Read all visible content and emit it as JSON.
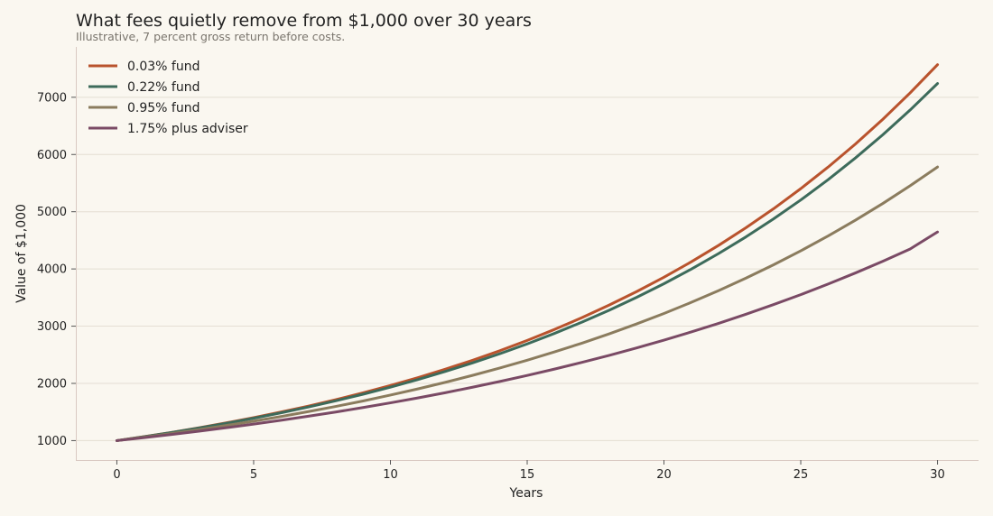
{
  "chart_data": {
    "type": "line",
    "title": "What fees quietly remove from $1,000 over 30 years",
    "subtitle": "Illustrative, 7 percent gross return before costs.",
    "xlabel": "Years",
    "ylabel": "Value of $1,000",
    "xlim": [
      -1.5,
      31.5
    ],
    "ylim": [
      660,
      7880
    ],
    "xticks": [
      0,
      5,
      10,
      15,
      20,
      25,
      30
    ],
    "yticks": [
      1000,
      2000,
      3000,
      4000,
      5000,
      6000,
      7000
    ],
    "grid": "horizontal",
    "legend_position": "top-left",
    "x": [
      0,
      1,
      2,
      3,
      4,
      5,
      6,
      7,
      8,
      9,
      10,
      11,
      12,
      13,
      14,
      15,
      16,
      17,
      18,
      19,
      20,
      21,
      22,
      23,
      24,
      25,
      26,
      27,
      28,
      29,
      30
    ],
    "series": [
      {
        "name": "0.03% fund",
        "color": "#b9532d",
        "values": [
          1000,
          1070,
          1144,
          1224,
          1310,
          1401,
          1499,
          1603,
          1715,
          1835,
          1963,
          2100,
          2247,
          2404,
          2571,
          2751,
          2943,
          3149,
          3369,
          3604,
          3855,
          4125,
          4413,
          4721,
          5050,
          5403,
          5780,
          6183,
          6615,
          7077,
          7570
        ]
      },
      {
        "name": "0.22% fund",
        "color": "#3d6b5b",
        "values": [
          1000,
          1068,
          1141,
          1219,
          1302,
          1391,
          1486,
          1587,
          1695,
          1811,
          1934,
          2066,
          2207,
          2358,
          2518,
          2690,
          2874,
          3070,
          3279,
          3503,
          3742,
          3997,
          4270,
          4561,
          4873,
          5205,
          5560,
          5940,
          6345,
          6778,
          7240
        ]
      },
      {
        "name": "0.95% fund",
        "color": "#8b7c5e",
        "values": [
          1000,
          1060,
          1124,
          1193,
          1265,
          1340,
          1421,
          1507,
          1597,
          1693,
          1796,
          1903,
          2018,
          2140,
          2269,
          2405,
          2550,
          2703,
          2866,
          3039,
          3222,
          3416,
          3622,
          3840,
          4071,
          4316,
          4576,
          4852,
          5144,
          5454,
          5782
        ]
      },
      {
        "name": "1.75% plus adviser",
        "color": "#7a4a65",
        "values": [
          1000,
          1052,
          1107,
          1164,
          1225,
          1288,
          1355,
          1426,
          1500,
          1578,
          1660,
          1746,
          1837,
          1933,
          2033,
          2139,
          2250,
          2367,
          2490,
          2620,
          2756,
          2900,
          3050,
          3209,
          3376,
          3551,
          3736,
          3930,
          4134,
          4349,
          4646
        ]
      }
    ]
  }
}
